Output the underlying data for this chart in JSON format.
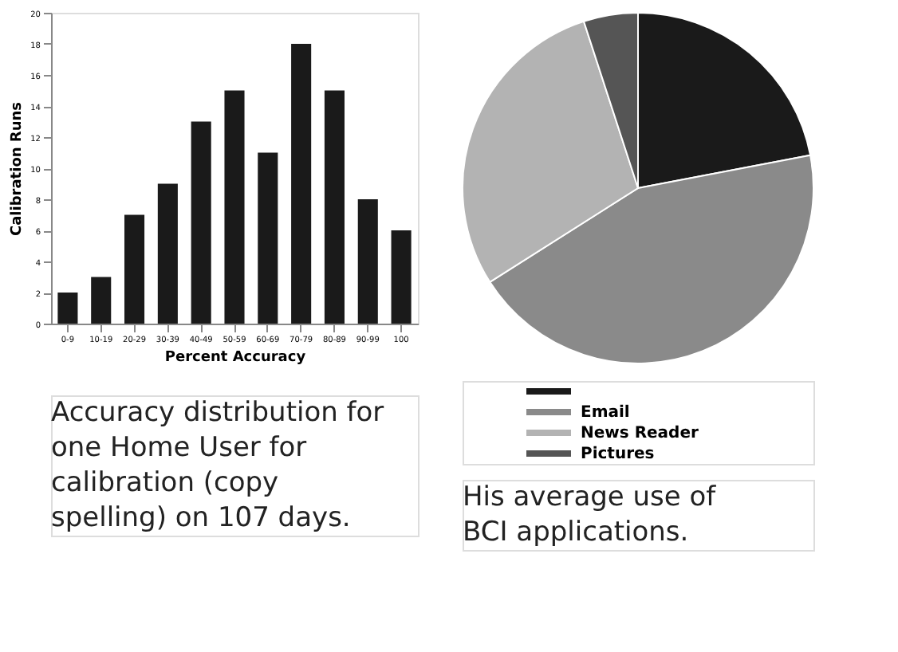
{
  "chart_data": [
    {
      "type": "bar",
      "xlabel": "Percent Accuracy",
      "ylabel": "Calibration Runs",
      "categories": [
        "0-9",
        "10-19",
        "20-29",
        "30-39",
        "40-49",
        "50-59",
        "60-69",
        "70-79",
        "80-89",
        "90-99",
        "100"
      ],
      "values": [
        2,
        3,
        7,
        9,
        13,
        15,
        11,
        18,
        15,
        8,
        6
      ],
      "color": "#1a1a1a",
      "ylim": [
        0,
        20
      ],
      "yticks": [
        0,
        2,
        4,
        6,
        8,
        10,
        12,
        14,
        16,
        18,
        20
      ],
      "grid": false,
      "annotations": [
        "Accuracy distribution for one Home User for calibration (copy spelling) on 107 days."
      ]
    },
    {
      "type": "pie",
      "categories": [
        null,
        "Email",
        "News Reader",
        "Pictures"
      ],
      "values": [
        22,
        44,
        29,
        5
      ],
      "colors": [
        "#1a1a1a",
        "#8a8a8a",
        "#b3b3b3",
        "#555555"
      ],
      "legend": "bottom",
      "annotations": [
        "His average use of BCI applications."
      ]
    }
  ]
}
